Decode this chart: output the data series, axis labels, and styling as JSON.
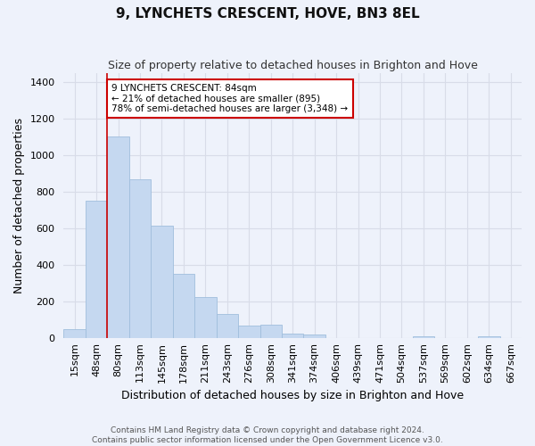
{
  "title": "9, LYNCHETS CRESCENT, HOVE, BN3 8EL",
  "subtitle": "Size of property relative to detached houses in Brighton and Hove",
  "xlabel": "Distribution of detached houses by size in Brighton and Hove",
  "ylabel": "Number of detached properties",
  "footer_line1": "Contains HM Land Registry data © Crown copyright and database right 2024.",
  "footer_line2": "Contains public sector information licensed under the Open Government Licence v3.0.",
  "categories": [
    "15sqm",
    "48sqm",
    "80sqm",
    "113sqm",
    "145sqm",
    "178sqm",
    "211sqm",
    "243sqm",
    "276sqm",
    "308sqm",
    "341sqm",
    "374sqm",
    "406sqm",
    "439sqm",
    "471sqm",
    "504sqm",
    "537sqm",
    "569sqm",
    "602sqm",
    "634sqm",
    "667sqm"
  ],
  "values": [
    50,
    750,
    1100,
    870,
    615,
    350,
    225,
    130,
    65,
    70,
    25,
    20,
    0,
    0,
    0,
    0,
    10,
    0,
    0,
    10,
    0
  ],
  "bar_color": "#c5d8f0",
  "bar_edge_color": "#a0bedd",
  "background_color": "#eef2fb",
  "grid_color": "#d8dce8",
  "vline_color": "#cc0000",
  "annotation_text": "9 LYNCHETS CRESCENT: 84sqm\n← 21% of detached houses are smaller (895)\n78% of semi-detached houses are larger (3,348) →",
  "annotation_box_facecolor": "white",
  "annotation_box_edgecolor": "#cc0000",
  "ylim": [
    0,
    1450
  ],
  "yticks": [
    0,
    200,
    400,
    600,
    800,
    1000,
    1200,
    1400
  ],
  "title_fontsize": 11,
  "subtitle_fontsize": 9,
  "ylabel_fontsize": 9,
  "xlabel_fontsize": 9,
  "tick_fontsize": 8,
  "footer_fontsize": 6.5
}
